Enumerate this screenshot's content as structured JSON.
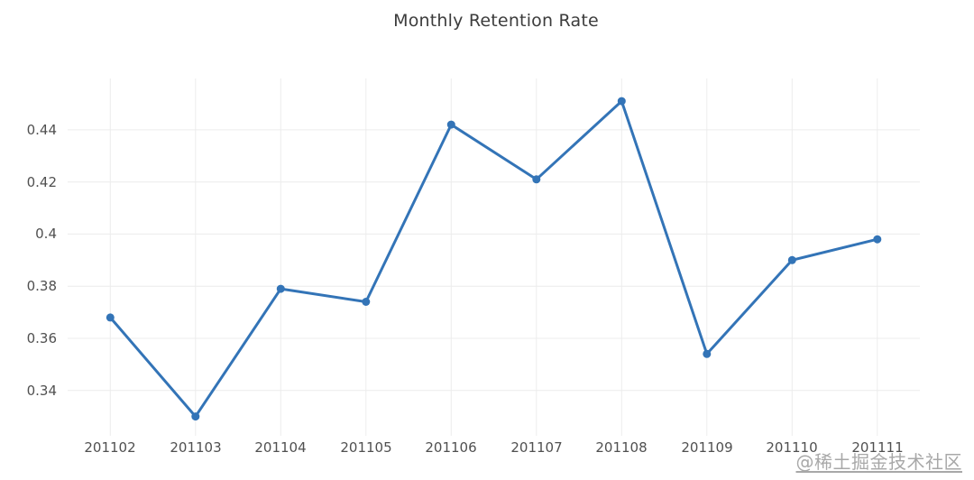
{
  "chart_data": {
    "type": "line",
    "title": "Monthly Retention Rate",
    "categories": [
      "201102",
      "201103",
      "201104",
      "201105",
      "201106",
      "201107",
      "201108",
      "201109",
      "201110",
      "201111"
    ],
    "series": [
      {
        "name": "Monthly Retention Rate",
        "values": [
          0.368,
          0.33,
          0.379,
          0.374,
          0.442,
          0.421,
          0.451,
          0.354,
          0.39,
          0.398
        ]
      }
    ],
    "xlabel": "",
    "ylabel": "",
    "yticks": [
      {
        "label": "0.34",
        "value": 0.34
      },
      {
        "label": "0.36",
        "value": 0.36
      },
      {
        "label": "0.38",
        "value": 0.38
      },
      {
        "label": "0.4",
        "value": 0.4
      },
      {
        "label": "0.42",
        "value": 0.42
      },
      {
        "label": "0.44",
        "value": 0.44
      }
    ],
    "ylim": [
      0.3226,
      0.4597
    ],
    "grid": true,
    "legend": false,
    "marker": "circle"
  },
  "colors": {
    "line": "#3374b7",
    "marker": "#3374b7",
    "grid": "#ececec",
    "axis_label": "#505050",
    "title": "#3c3c3c",
    "watermark": "#a8a8a8",
    "background": "#ffffff"
  },
  "watermark": {
    "text": "@稀土掘金技术社区"
  }
}
